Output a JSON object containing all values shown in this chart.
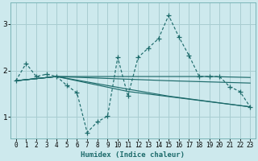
{
  "xlabel": "Humidex (Indice chaleur)",
  "bg_color": "#cde9ed",
  "grid_color": "#a8cdd1",
  "line_color": "#1d6b6b",
  "xlim": [
    -0.5,
    23.5
  ],
  "ylim": [
    0.55,
    3.45
  ],
  "xticks": [
    0,
    1,
    2,
    3,
    4,
    5,
    6,
    7,
    8,
    9,
    10,
    11,
    12,
    13,
    14,
    15,
    16,
    17,
    18,
    19,
    20,
    21,
    22,
    23
  ],
  "yticks": [
    1,
    2,
    3
  ],
  "main_x": [
    0,
    1,
    2,
    3,
    4,
    5,
    6,
    7,
    8,
    9,
    10,
    11,
    12,
    13,
    14,
    15,
    16,
    17,
    18,
    19,
    20,
    21,
    22,
    23
  ],
  "main_y": [
    1.78,
    2.15,
    1.87,
    1.92,
    1.87,
    1.68,
    1.52,
    0.67,
    0.9,
    1.02,
    2.28,
    1.45,
    2.28,
    2.48,
    2.68,
    3.18,
    2.72,
    2.32,
    1.87,
    1.87,
    1.87,
    1.65,
    1.55,
    1.22
  ],
  "trend_lines": [
    {
      "x": [
        0,
        4,
        15,
        19,
        23
      ],
      "y": [
        1.78,
        1.87,
        1.87,
        1.87,
        1.85
      ]
    },
    {
      "x": [
        0,
        4,
        15,
        23
      ],
      "y": [
        1.78,
        1.87,
        1.78,
        1.73
      ]
    },
    {
      "x": [
        0,
        4,
        11,
        15,
        23
      ],
      "y": [
        1.78,
        1.87,
        1.6,
        1.45,
        1.22
      ]
    },
    {
      "x": [
        0,
        4,
        11,
        23
      ],
      "y": [
        1.78,
        1.87,
        1.55,
        1.22
      ]
    }
  ]
}
